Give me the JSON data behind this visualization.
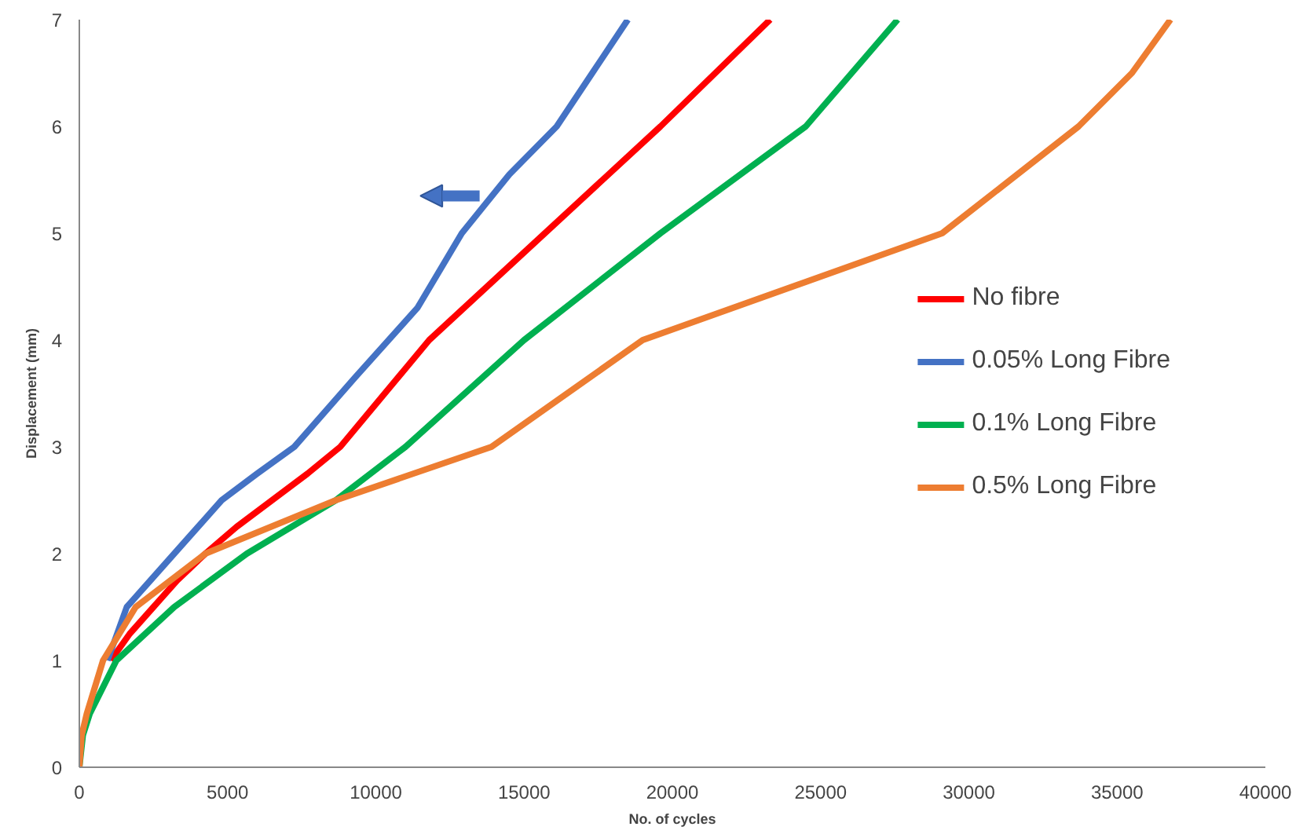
{
  "chart_data": {
    "type": "line",
    "xlabel": "No. of cycles",
    "ylabel": "Displacement (mm)",
    "xlim": [
      0,
      40000
    ],
    "ylim": [
      0,
      7
    ],
    "xticks": [
      0,
      5000,
      10000,
      15000,
      20000,
      25000,
      30000,
      35000,
      40000
    ],
    "yticks": [
      0,
      1,
      2,
      3,
      4,
      5,
      6,
      7
    ],
    "grid": false,
    "legend": "right",
    "marker": "none",
    "line_style": "solid",
    "series": [
      {
        "name": "No fibre",
        "color": "#ff0000",
        "x": [
          1060,
          1700,
          2500,
          3300,
          4250,
          5300,
          6500,
          7700,
          8800,
          11800,
          15700,
          19600,
          23300
        ],
        "values": [
          1,
          1.25,
          1.5,
          1.75,
          2,
          2.25,
          2.5,
          2.75,
          3,
          4,
          5,
          6,
          7
        ]
      },
      {
        "name": "0.05% Long Fibre",
        "color": "#4472c4",
        "x": [
          950,
          1600,
          2400,
          3200,
          4000,
          4800,
          6000,
          7250,
          9300,
          11400,
          12900,
          14500,
          16100,
          17300,
          18500
        ],
        "values": [
          1,
          1.5,
          1.75,
          2,
          2.25,
          2.5,
          2.75,
          3,
          3.65,
          4.3,
          5,
          5.55,
          6,
          6.5,
          7
        ]
      },
      {
        "name": "0.1% Long Fibre",
        "color": "#00b050",
        "x": [
          0,
          120,
          350,
          1250,
          3200,
          5650,
          8650,
          11000,
          15000,
          19600,
          24500,
          27600
        ],
        "values": [
          0,
          0.3,
          0.5,
          1,
          1.5,
          2,
          2.5,
          3,
          4,
          5,
          6,
          7
        ]
      },
      {
        "name": "0.5% Long Fibre",
        "color": "#ed7d31",
        "x": [
          0,
          80,
          250,
          800,
          1900,
          4250,
          8650,
          13900,
          19000,
          29100,
          33700,
          35500,
          36800
        ],
        "values": [
          0,
          0.3,
          0.5,
          1,
          1.5,
          2,
          2.5,
          3,
          4,
          5,
          6,
          6.5,
          7
        ]
      }
    ]
  }
}
